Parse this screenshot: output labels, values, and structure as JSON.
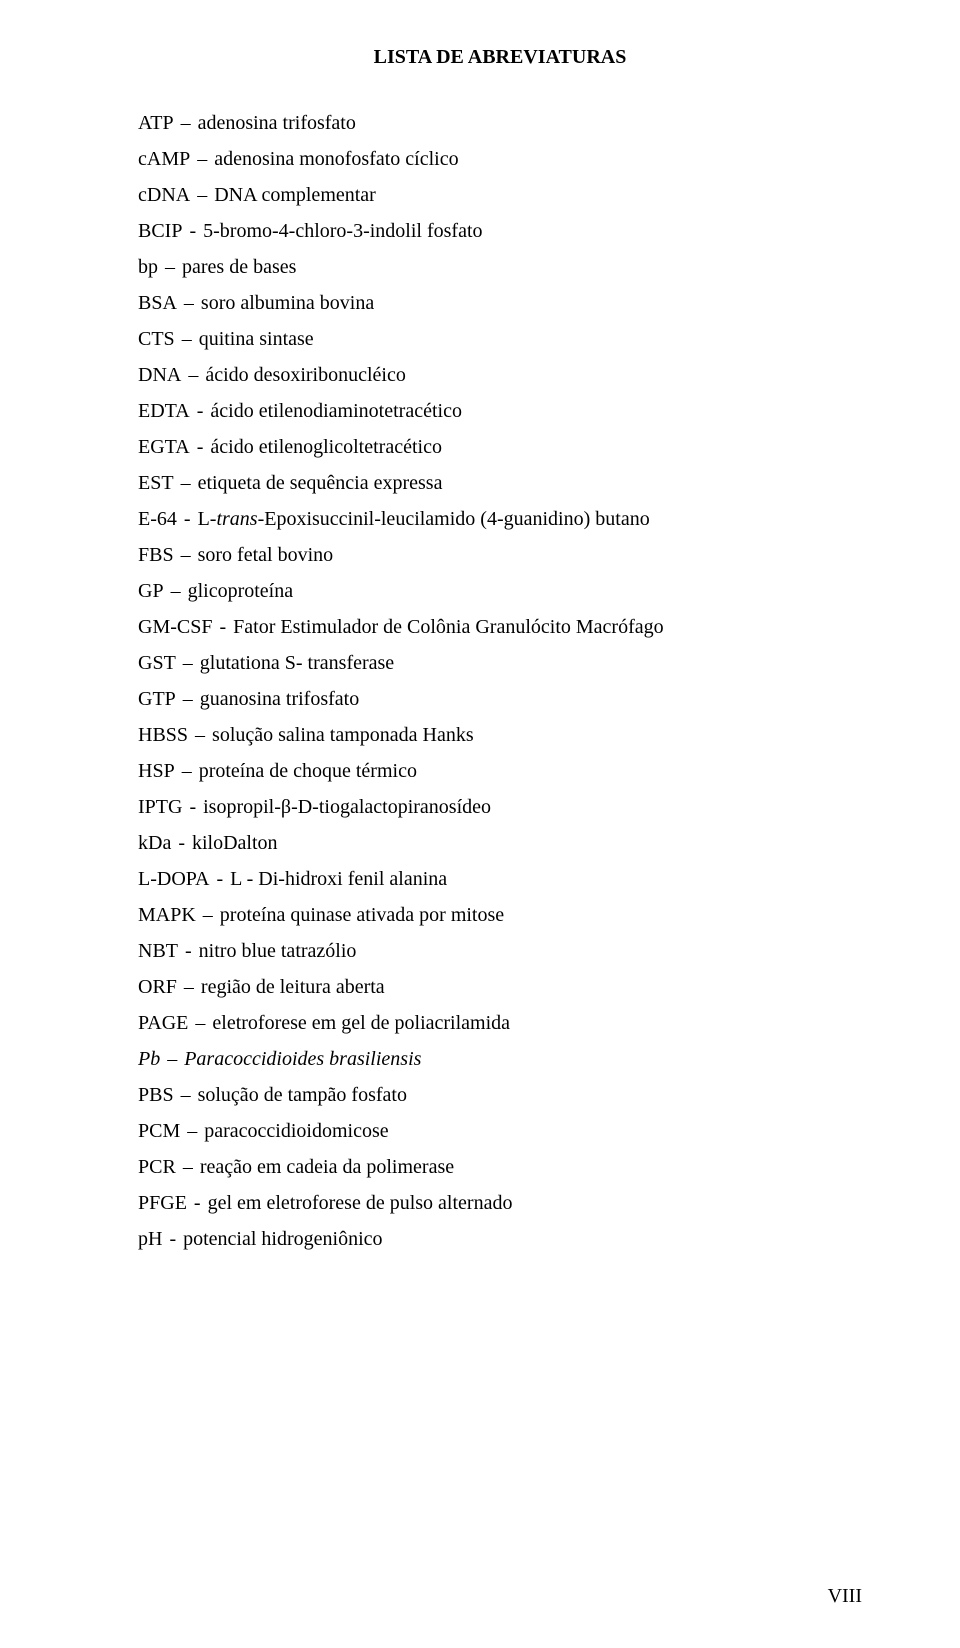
{
  "title": "LISTA DE ABREVIATURAS",
  "separator": "–",
  "page_number": "VIII",
  "colors": {
    "background": "#ffffff",
    "text": "#000000"
  },
  "typography": {
    "font_family": "Times New Roman",
    "body_fontsize_pt": 15,
    "title_fontsize_pt": 15,
    "title_weight": "bold",
    "line_spacing": 1.2
  },
  "entries": [
    {
      "abbrev": "ATP",
      "def": "adenosina trifosfato"
    },
    {
      "abbrev": "cAMP",
      "def": "adenosina monofosfato cíclico"
    },
    {
      "abbrev": "cDNA",
      "def": "DNA complementar"
    },
    {
      "abbrev": "BCIP",
      "sep": "-",
      "def": "5-bromo-4-chloro-3-indolil fosfato"
    },
    {
      "abbrev": "bp",
      "def": "pares de bases"
    },
    {
      "abbrev": "BSA",
      "def": "soro albumina bovina"
    },
    {
      "abbrev": "CTS",
      "def": "quitina sintase"
    },
    {
      "abbrev": "DNA",
      "def": "ácido desoxiribonucléico"
    },
    {
      "abbrev": "EDTA",
      "sep": "-",
      "def": "ácido etilenodiaminotetracético"
    },
    {
      "abbrev": "EGTA",
      "sep": "-",
      "def": "ácido etilenoglicoltetracético"
    },
    {
      "abbrev": "EST",
      "def": "etiqueta de sequência expressa"
    },
    {
      "abbrev": "E-64",
      "sep": "-",
      "def_html": "L-<i>trans</i>-Epoxisuccinil-leucilamido (4-guanidino) butano"
    },
    {
      "abbrev": "FBS",
      "def": "soro fetal bovino"
    },
    {
      "abbrev": "GP",
      "def": "glicoproteína"
    },
    {
      "abbrev": "GM-CSF",
      "sep": "-",
      "def": "Fator Estimulador de Colônia Granulócito Macrófago"
    },
    {
      "abbrev": "GST",
      "def": "glutationa S- transferase"
    },
    {
      "abbrev": "GTP",
      "def": "guanosina trifosfato"
    },
    {
      "abbrev": "HBSS",
      "def": "solução salina tamponada Hanks"
    },
    {
      "abbrev": "HSP",
      "def": "proteína de choque térmico"
    },
    {
      "abbrev": "IPTG",
      "sep": "-",
      "def": "isopropil-β-D-tiogalactopiranosídeo"
    },
    {
      "abbrev": "kDa",
      "sep": "-",
      "def": "kiloDalton"
    },
    {
      "abbrev": "L-DOPA",
      "sep": "-",
      "def": "L - Di-hidroxi fenil alanina"
    },
    {
      "abbrev": "MAPK",
      "def": "proteína quinase ativada por mitose"
    },
    {
      "abbrev": "NBT",
      "sep": "-",
      "def": "nitro blue tatrazólio"
    },
    {
      "abbrev": "ORF",
      "def": "região de leitura aberta"
    },
    {
      "abbrev": "PAGE",
      "def": "eletroforese em gel de poliacrilamida"
    },
    {
      "abbrev_html": "<i>Pb</i>",
      "def_html": "<i>Paracoccidioides brasiliensis</i>"
    },
    {
      "abbrev": "PBS",
      "def": "solução de tampão fosfato"
    },
    {
      "abbrev": "PCM",
      "def": "paracoccidioidomicose"
    },
    {
      "abbrev": "PCR",
      "def": "reação em cadeia da polimerase"
    },
    {
      "abbrev": "PFGE",
      "sep": "-",
      "def": "gel em eletroforese de pulso alternado"
    },
    {
      "abbrev": "pH",
      "sep": "-",
      "def": "potencial hidrogeniônico"
    }
  ]
}
